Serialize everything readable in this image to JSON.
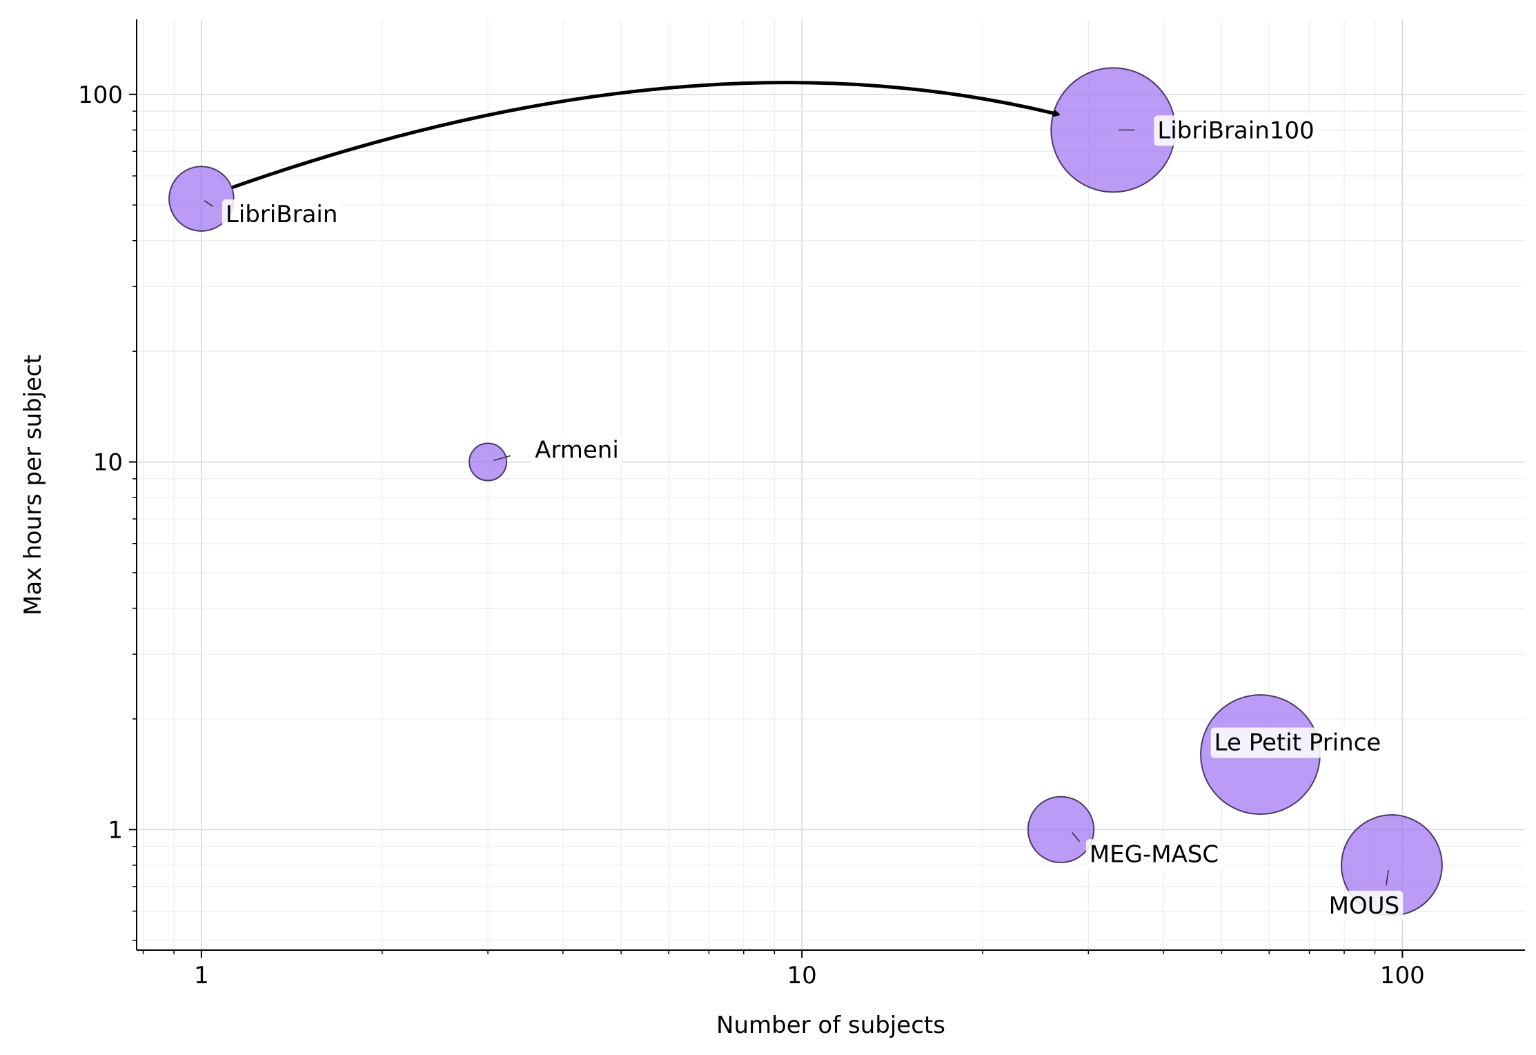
{
  "chart_data": {
    "type": "scatter",
    "variant": "bubble",
    "title": "",
    "xlabel": "Number of subjects",
    "ylabel": "Max hours per subject",
    "xscale": "log",
    "yscale": "log",
    "xlim": [
      0.78,
      160
    ],
    "ylim": [
      0.47,
      160
    ],
    "grid": true,
    "x_ticks": [
      {
        "value": 1,
        "label": "1"
      },
      {
        "value": 10,
        "label": "10"
      },
      {
        "value": 100,
        "label": "100"
      }
    ],
    "y_ticks": [
      {
        "value": 1,
        "label": "1"
      },
      {
        "value": 10,
        "label": "10"
      },
      {
        "value": 100,
        "label": "100"
      }
    ],
    "bubble_color": "#9b6cf0",
    "bubble_edge_color": "#4a3a66",
    "points": [
      {
        "label": "LibriBrain",
        "x": 1,
        "y": 52,
        "size": 52
      },
      {
        "label": "LibriBrain100",
        "x": 33,
        "y": 80,
        "size": 100
      },
      {
        "label": "Armeni",
        "x": 3,
        "y": 10,
        "size": 30
      },
      {
        "label": "Le Petit Prince",
        "x": 58,
        "y": 1.6,
        "size": 96
      },
      {
        "label": "MEG-MASC",
        "x": 27,
        "y": 1.0,
        "size": 53
      },
      {
        "label": "MOUS",
        "x": 96,
        "y": 0.8,
        "size": 81
      }
    ],
    "annotations": [
      {
        "type": "arrow",
        "from": "LibriBrain",
        "to": "LibriBrain100"
      }
    ]
  }
}
